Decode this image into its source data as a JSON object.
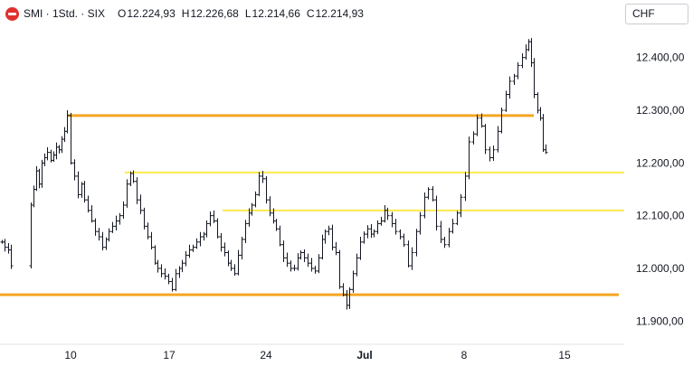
{
  "header": {
    "symbol": "SMI · 1Std. · SIX",
    "open_label": "O",
    "open": "12.224,93",
    "high_label": "H",
    "high": "12.226,68",
    "low_label": "L",
    "low": "12.214,66",
    "close_label": "C",
    "close": "12.214,93"
  },
  "currency": "CHF",
  "colors": {
    "candle": "#131722",
    "support": "#f5a623",
    "resistance": "#fbe94d",
    "logo": "#e0312f",
    "axis_text": "#131722"
  },
  "chart_data": {
    "type": "ohlc",
    "yticks": [
      11900,
      12000,
      12100,
      12200,
      12300,
      12400
    ],
    "ytick_labels": [
      "11.900,00",
      "12.000,00",
      "12.100,00",
      "12.200,00",
      "12.300,00",
      "12.400,00"
    ],
    "xtick_labels": [
      "10",
      "17",
      "24",
      "Jul",
      "8",
      "15"
    ],
    "ylim": [
      11860,
      12490
    ],
    "grid": false,
    "price_series": [
      12050,
      12040,
      12035,
      12005,
      12120,
      12150,
      12185,
      12160,
      12200,
      12210,
      12220,
      12205,
      12215,
      12230,
      12225,
      12245,
      12260,
      12290,
      12200,
      12175,
      12140,
      12160,
      12130,
      12110,
      12090,
      12070,
      12060,
      12040,
      12055,
      12070,
      12080,
      12090,
      12100,
      12120,
      12160,
      12180,
      12165,
      12130,
      12110,
      12080,
      12060,
      12040,
      12010,
      12000,
      11990,
      11985,
      11975,
      11960,
      11990,
      12000,
      12010,
      12025,
      12035,
      12040,
      12050,
      12060,
      12065,
      12085,
      12100,
      12090,
      12060,
      12040,
      12030,
      12010,
      12000,
      11990,
      12025,
      12055,
      12085,
      12105,
      12120,
      12140,
      12175,
      12170,
      12130,
      12105,
      12090,
      12075,
      12045,
      12020,
      12010,
      12000,
      12000,
      12020,
      12030,
      12020,
      12010,
      12000,
      11995,
      12020,
      12055,
      12070,
      12075,
      12040,
      12030,
      11965,
      11950,
      11930,
      11960,
      11990,
      12020,
      12050,
      12065,
      12075,
      12065,
      12070,
      12085,
      12090,
      12110,
      12100,
      12085,
      12070,
      12060,
      12045,
      12005,
      12030,
      12070,
      12100,
      12135,
      12150,
      12130,
      12080,
      12055,
      12045,
      12070,
      12085,
      12105,
      12135,
      12175,
      12240,
      12255,
      12285,
      12270,
      12225,
      12210,
      12225,
      12260,
      12300,
      12330,
      12355,
      12365,
      12385,
      12400,
      12415,
      12430,
      12390,
      12330,
      12300,
      12285,
      12225,
      12220
    ],
    "levels": [
      {
        "name": "resistance-upper",
        "value": 12290,
        "color": "support"
      },
      {
        "name": "level-mid-upper",
        "value": 12182,
        "color": "resistance"
      },
      {
        "name": "level-mid-lower",
        "value": 12110,
        "color": "resistance"
      },
      {
        "name": "support-lower",
        "value": 11950,
        "color": "support"
      }
    ]
  }
}
